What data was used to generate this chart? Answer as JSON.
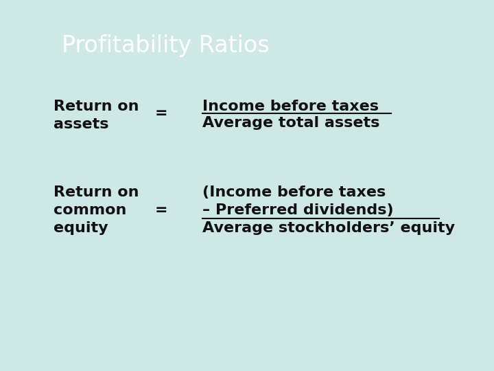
{
  "title": "Profitability Ratios",
  "background_color": "#cde8e5",
  "title_color": "#ffffff",
  "text_color": "#111111",
  "title_fontsize": 24,
  "body_fontsize": 16,
  "ratio1_left_line1": "Return on",
  "ratio1_left_line2": "assets",
  "ratio1_equals": "=",
  "ratio1_numerator": "Income before taxes",
  "ratio1_denominator": "Average total assets",
  "ratio2_left_line1": "Return on",
  "ratio2_left_line2": "common",
  "ratio2_left_line3": "equity",
  "ratio2_equals": "=",
  "ratio2_num_line1": "(Income before taxes",
  "ratio2_num_line2": "– Preferred dividends)",
  "ratio2_denominator": "Average stockholders’ equity"
}
